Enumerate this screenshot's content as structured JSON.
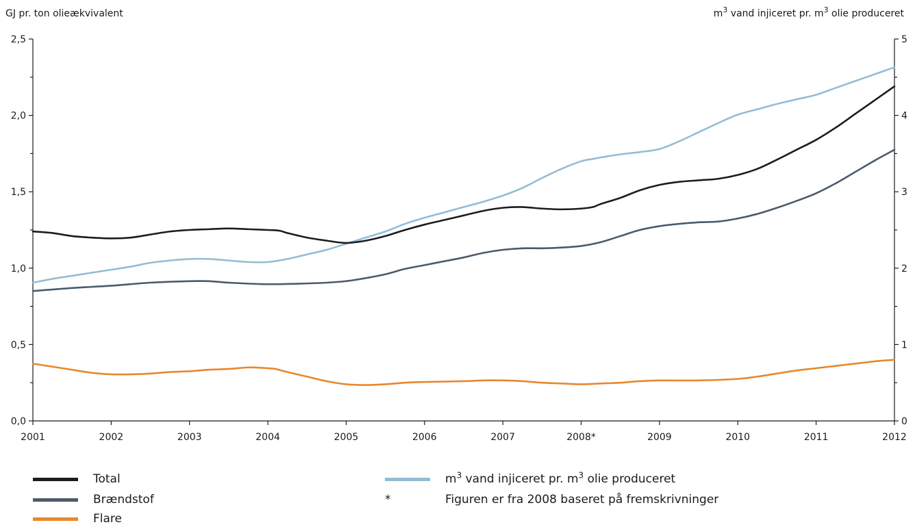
{
  "chart_data": {
    "type": "line",
    "left_axis_title": "GJ pr. ton olieækvivalent",
    "right_axis_title_parts": [
      "m",
      "3",
      " vand injiceret pr. m",
      "3",
      " olie produceret"
    ],
    "x": [
      2001,
      2002,
      2003,
      2004,
      2005,
      2006,
      2007,
      2008,
      2009,
      2010,
      2011,
      2012
    ],
    "x_tick_labels": [
      "2001",
      "2002",
      "2003",
      "2004",
      "2005",
      "2006",
      "2007",
      "2008*",
      "2009",
      "2010",
      "2011",
      "2012"
    ],
    "y_left_ticks": [
      {
        "v": 0,
        "label": "0,0"
      },
      {
        "v": 0.5,
        "label": "0,5"
      },
      {
        "v": 1.0,
        "label": "1,0"
      },
      {
        "v": 1.5,
        "label": "1,5"
      },
      {
        "v": 2.0,
        "label": "2,0"
      },
      {
        "v": 2.5,
        "label": "2,5"
      }
    ],
    "y_right_ticks": [
      {
        "v": 0,
        "label": "0"
      },
      {
        "v": 1,
        "label": "1"
      },
      {
        "v": 2,
        "label": "2"
      },
      {
        "v": 3,
        "label": "3"
      },
      {
        "v": 4,
        "label": "4"
      },
      {
        "v": 5,
        "label": "5"
      }
    ],
    "ylim_left": [
      0,
      2.5
    ],
    "ylim_right": [
      0,
      5
    ],
    "xlim": [
      2001,
      2012
    ],
    "grid": false,
    "series": [
      {
        "name": "Total",
        "axis": "left",
        "color": "#1c1c1c",
        "points": [
          [
            2001,
            1.24
          ],
          [
            2001.25,
            1.23
          ],
          [
            2001.5,
            1.21
          ],
          [
            2001.75,
            1.2
          ],
          [
            2002,
            1.195
          ],
          [
            2002.25,
            1.2
          ],
          [
            2002.5,
            1.22
          ],
          [
            2002.75,
            1.24
          ],
          [
            2003,
            1.25
          ],
          [
            2003.25,
            1.255
          ],
          [
            2003.5,
            1.26
          ],
          [
            2003.75,
            1.255
          ],
          [
            2004,
            1.25
          ],
          [
            2004.15,
            1.245
          ],
          [
            2004.25,
            1.23
          ],
          [
            2004.5,
            1.2
          ],
          [
            2004.75,
            1.18
          ],
          [
            2005,
            1.165
          ],
          [
            2005.25,
            1.18
          ],
          [
            2005.5,
            1.21
          ],
          [
            2005.75,
            1.25
          ],
          [
            2006,
            1.285
          ],
          [
            2006.25,
            1.315
          ],
          [
            2006.5,
            1.345
          ],
          [
            2006.75,
            1.375
          ],
          [
            2007,
            1.395
          ],
          [
            2007.25,
            1.4
          ],
          [
            2007.5,
            1.39
          ],
          [
            2007.75,
            1.385
          ],
          [
            2008,
            1.39
          ],
          [
            2008.15,
            1.4
          ],
          [
            2008.25,
            1.42
          ],
          [
            2008.5,
            1.46
          ],
          [
            2008.75,
            1.51
          ],
          [
            2009,
            1.545
          ],
          [
            2009.25,
            1.565
          ],
          [
            2009.5,
            1.575
          ],
          [
            2009.75,
            1.585
          ],
          [
            2010,
            1.61
          ],
          [
            2010.25,
            1.65
          ],
          [
            2010.5,
            1.71
          ],
          [
            2010.75,
            1.775
          ],
          [
            2011,
            1.84
          ],
          [
            2011.25,
            1.92
          ],
          [
            2011.5,
            2.01
          ],
          [
            2011.75,
            2.1
          ],
          [
            2012,
            2.19
          ]
        ]
      },
      {
        "name": "Brændstof",
        "axis": "left",
        "color": "#4a5b6b",
        "points": [
          [
            2001,
            0.85
          ],
          [
            2001.5,
            0.87
          ],
          [
            2002,
            0.885
          ],
          [
            2002.5,
            0.905
          ],
          [
            2003,
            0.915
          ],
          [
            2003.25,
            0.915
          ],
          [
            2003.5,
            0.905
          ],
          [
            2004,
            0.895
          ],
          [
            2004.5,
            0.9
          ],
          [
            2004.75,
            0.905
          ],
          [
            2005,
            0.915
          ],
          [
            2005.25,
            0.935
          ],
          [
            2005.5,
            0.96
          ],
          [
            2005.75,
            0.995
          ],
          [
            2006,
            1.02
          ],
          [
            2006.25,
            1.045
          ],
          [
            2006.5,
            1.07
          ],
          [
            2006.75,
            1.1
          ],
          [
            2007,
            1.12
          ],
          [
            2007.25,
            1.13
          ],
          [
            2007.5,
            1.13
          ],
          [
            2007.75,
            1.135
          ],
          [
            2008,
            1.145
          ],
          [
            2008.25,
            1.17
          ],
          [
            2008.5,
            1.21
          ],
          [
            2008.75,
            1.25
          ],
          [
            2009,
            1.275
          ],
          [
            2009.25,
            1.29
          ],
          [
            2009.5,
            1.3
          ],
          [
            2009.75,
            1.305
          ],
          [
            2010,
            1.325
          ],
          [
            2010.25,
            1.355
          ],
          [
            2010.5,
            1.395
          ],
          [
            2010.75,
            1.44
          ],
          [
            2011,
            1.49
          ],
          [
            2011.25,
            1.555
          ],
          [
            2011.5,
            1.63
          ],
          [
            2011.75,
            1.705
          ],
          [
            2012,
            1.775
          ]
        ]
      },
      {
        "name": "Flare",
        "axis": "left",
        "color": "#e8872c",
        "points": [
          [
            2001,
            0.375
          ],
          [
            2001.25,
            0.355
          ],
          [
            2001.5,
            0.335
          ],
          [
            2001.75,
            0.315
          ],
          [
            2002,
            0.305
          ],
          [
            2002.25,
            0.305
          ],
          [
            2002.5,
            0.31
          ],
          [
            2002.75,
            0.32
          ],
          [
            2003,
            0.325
          ],
          [
            2003.25,
            0.335
          ],
          [
            2003.5,
            0.34
          ],
          [
            2003.75,
            0.35
          ],
          [
            2004,
            0.345
          ],
          [
            2004.1,
            0.34
          ],
          [
            2004.25,
            0.32
          ],
          [
            2004.5,
            0.29
          ],
          [
            2004.75,
            0.26
          ],
          [
            2005,
            0.24
          ],
          [
            2005.25,
            0.235
          ],
          [
            2005.5,
            0.24
          ],
          [
            2005.75,
            0.25
          ],
          [
            2006,
            0.255
          ],
          [
            2006.5,
            0.26
          ],
          [
            2006.75,
            0.265
          ],
          [
            2007,
            0.265
          ],
          [
            2007.25,
            0.26
          ],
          [
            2007.5,
            0.25
          ],
          [
            2007.75,
            0.245
          ],
          [
            2008,
            0.24
          ],
          [
            2008.25,
            0.245
          ],
          [
            2008.5,
            0.25
          ],
          [
            2008.75,
            0.26
          ],
          [
            2009,
            0.265
          ],
          [
            2009.5,
            0.265
          ],
          [
            2010,
            0.275
          ],
          [
            2010.25,
            0.29
          ],
          [
            2010.5,
            0.31
          ],
          [
            2010.75,
            0.33
          ],
          [
            2011,
            0.345
          ],
          [
            2011.25,
            0.36
          ],
          [
            2011.5,
            0.375
          ],
          [
            2011.75,
            0.39
          ],
          [
            2012,
            0.4
          ]
        ]
      },
      {
        "name_parts": [
          "m",
          "3",
          " vand injiceret pr. m",
          "3",
          " olie produceret"
        ],
        "axis": "right",
        "color": "#94bcd5",
        "points": [
          [
            2001,
            1.81
          ],
          [
            2001.25,
            1.86
          ],
          [
            2001.5,
            1.9
          ],
          [
            2001.75,
            1.94
          ],
          [
            2002,
            1.98
          ],
          [
            2002.25,
            2.02
          ],
          [
            2002.5,
            2.07
          ],
          [
            2002.75,
            2.1
          ],
          [
            2003,
            2.12
          ],
          [
            2003.25,
            2.12
          ],
          [
            2003.5,
            2.1
          ],
          [
            2003.75,
            2.08
          ],
          [
            2004,
            2.08
          ],
          [
            2004.25,
            2.12
          ],
          [
            2004.5,
            2.18
          ],
          [
            2004.75,
            2.24
          ],
          [
            2005,
            2.32
          ],
          [
            2005.25,
            2.4
          ],
          [
            2005.5,
            2.48
          ],
          [
            2005.75,
            2.58
          ],
          [
            2006,
            2.66
          ],
          [
            2006.25,
            2.73
          ],
          [
            2006.5,
            2.8
          ],
          [
            2006.75,
            2.87
          ],
          [
            2007,
            2.95
          ],
          [
            2007.25,
            3.05
          ],
          [
            2007.5,
            3.18
          ],
          [
            2007.75,
            3.3
          ],
          [
            2008,
            3.4
          ],
          [
            2008.15,
            3.43
          ],
          [
            2008.25,
            3.45
          ],
          [
            2008.5,
            3.49
          ],
          [
            2008.75,
            3.52
          ],
          [
            2009,
            3.56
          ],
          [
            2009.25,
            3.66
          ],
          [
            2009.5,
            3.78
          ],
          [
            2009.75,
            3.9
          ],
          [
            2010,
            4.01
          ],
          [
            2010.25,
            4.08
          ],
          [
            2010.5,
            4.15
          ],
          [
            2010.75,
            4.21
          ],
          [
            2011,
            4.27
          ],
          [
            2011.25,
            4.36
          ],
          [
            2011.5,
            4.45
          ],
          [
            2011.75,
            4.54
          ],
          [
            2012,
            4.63
          ]
        ]
      }
    ]
  },
  "legend": {
    "total": "Total",
    "braendstof": "Brændstof",
    "flare": "Flare",
    "water_parts": [
      "m",
      "3",
      " vand injiceret pr. m",
      "3",
      " olie produceret"
    ],
    "footnote_mark": "*",
    "footnote": "Figuren er fra 2008 baseret på fremskrivninger"
  }
}
